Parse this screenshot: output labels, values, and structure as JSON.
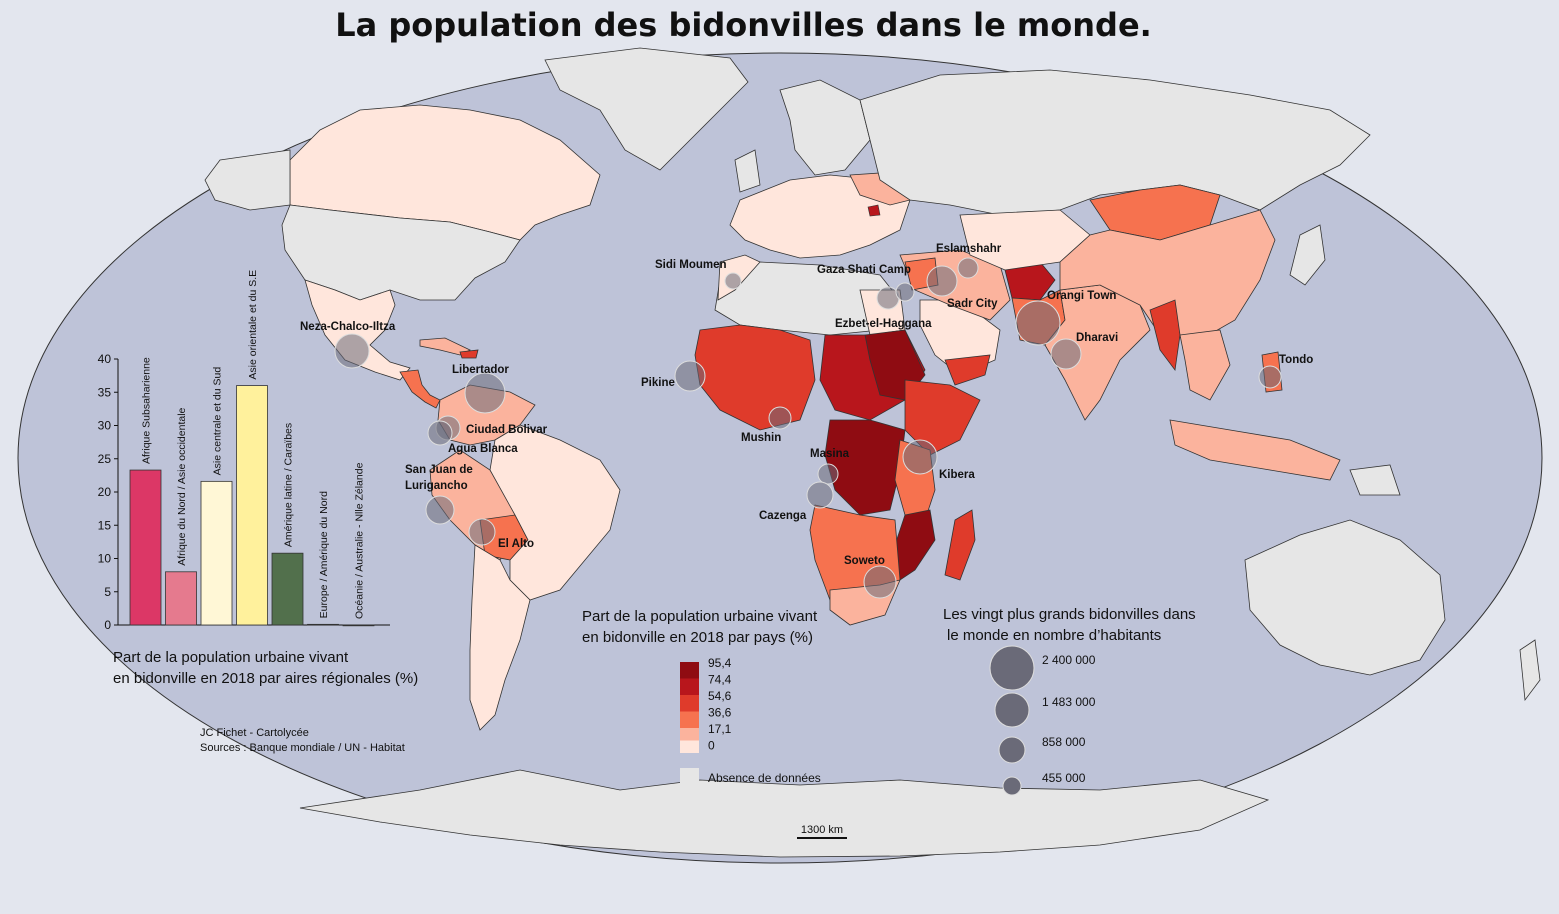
{
  "title": "La population des bidonvilles dans le monde.",
  "colors": {
    "ocean": "#bec3d8",
    "background": "#e3e6ee",
    "no_data": "#e6e6e6",
    "bubble": "#6a6a78",
    "class_colors": [
      "#ffe6dc",
      "#fbb39d",
      "#f6724f",
      "#df3b2b",
      "#b8161c",
      "#8f0c12"
    ]
  },
  "choropleth_legend": {
    "title_line1": "Part de la population urbaine vivant",
    "title_line2": "en bidonville en 2018 par pays (%)",
    "breaks": [
      "95,4",
      "74,4",
      "54,6",
      "36,6",
      "17,1",
      "0"
    ],
    "no_data_label": "Absence de données"
  },
  "bubble_legend": {
    "title_line1": "Les vingt plus grands bidonvilles dans",
    "title_line2": "le monde en nombre d’habitants",
    "sizes": [
      {
        "label": "2 400 000",
        "value": 2400000
      },
      {
        "label": "1 483 000",
        "value": 1483000
      },
      {
        "label": "858 000",
        "value": 858000
      },
      {
        "label": "455 000",
        "value": 455000
      }
    ]
  },
  "slums": [
    {
      "name": "Neza-Chalco-Iltza"
    },
    {
      "name": "Libertador"
    },
    {
      "name": "Ciudad Bolivar"
    },
    {
      "name": "Agua Blanca"
    },
    {
      "name": "San Juan de Lurigancho"
    },
    {
      "name": "El Alto"
    },
    {
      "name": "Sidi Moumen"
    },
    {
      "name": "Pikine"
    },
    {
      "name": "Mushin"
    },
    {
      "name": "Masina"
    },
    {
      "name": "Cazenga"
    },
    {
      "name": "Soweto"
    },
    {
      "name": "Kibera"
    },
    {
      "name": "Gaza Shati Camp"
    },
    {
      "name": "Ezbet-el-Haggana"
    },
    {
      "name": "Eslamshahr"
    },
    {
      "name": "Sadr City"
    },
    {
      "name": "Orangi Town"
    },
    {
      "name": "Dharavi"
    },
    {
      "name": "Tondo"
    }
  ],
  "chart_data": {
    "type": "bar",
    "categories": [
      "Afrique Subsaharienne",
      "Afrique du Nord / Asie occidentale",
      "Asie centrale et du Sud",
      "Asie orientale et du S.E",
      "Amérique latine / Caraïbes",
      "Europe / Amérique du Nord",
      "Océanie / Australie - Nlle Zélande"
    ],
    "values": [
      23.3,
      8.0,
      21.6,
      36.0,
      10.8,
      0.1,
      0
    ],
    "colors": [
      "#dc3766",
      "#e57a8e",
      "#fff7d6",
      "#fff19c",
      "#52704c",
      "#444444",
      "#444444"
    ],
    "yticks": [
      "0",
      "5",
      "10",
      "15",
      "20",
      "25",
      "30",
      "35",
      "40"
    ],
    "ylim": [
      0,
      40
    ],
    "caption_line1": "Part de la population urbaine vivant",
    "caption_line2": "en bidonville en 2018 par aires régionales (%)"
  },
  "credits": {
    "author": "JC Fichet - Cartolycée",
    "sources": "Sources : Banque mondiale / UN - Habitat"
  },
  "scale_bar": {
    "label": "1300 km"
  }
}
